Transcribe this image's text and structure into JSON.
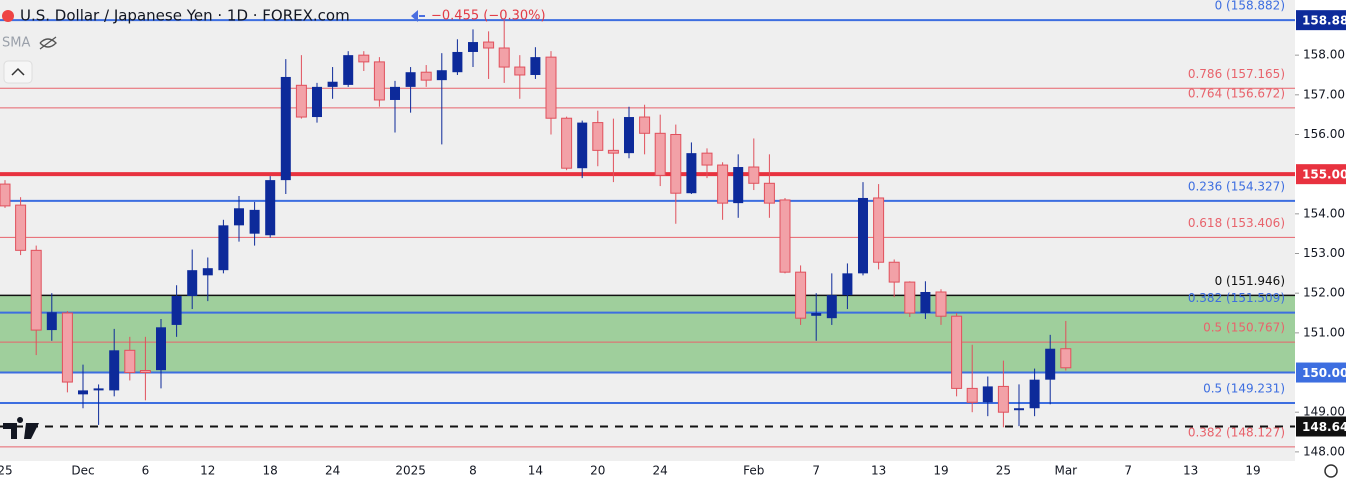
{
  "chart_data": {
    "type": "candlestick",
    "title": "U.S. Dollar / Japanese Yen · 1D · FOREX.com",
    "change_label": "−0.455 (−0.30%)",
    "indicator": "SMA",
    "up_color": "#0d2a9a",
    "down_color": "#f2a1a7",
    "down_border": "#e0505c",
    "categories": [
      "25",
      null,
      null,
      null,
      null,
      "Dec",
      null,
      null,
      null,
      "6",
      null,
      null,
      null,
      "12",
      null,
      null,
      null,
      "18",
      null,
      null,
      null,
      "24",
      null,
      null,
      null,
      null,
      "2025",
      null,
      null,
      null,
      "8",
      null,
      null,
      null,
      "14",
      null,
      null,
      null,
      "20",
      null,
      null,
      null,
      "24",
      null,
      null,
      null,
      null,
      null,
      "Feb",
      null,
      null,
      null,
      "7",
      null,
      null,
      null,
      "13",
      null,
      null,
      null,
      "19",
      null,
      null,
      null,
      "25",
      null,
      null,
      null,
      "Mar",
      null,
      null,
      null,
      "7",
      null,
      null,
      null,
      "13",
      null,
      null,
      null,
      "19"
    ],
    "open": [
      154.75,
      154.22,
      153.08,
      151.07,
      151.5,
      149.45,
      149.55,
      149.55,
      150.56,
      150.05,
      150.06,
      151.2,
      151.93,
      152.45,
      152.58,
      153.71,
      153.5,
      153.46,
      154.85,
      157.24,
      156.44,
      157.2,
      157.25,
      158.0,
      157.83,
      156.87,
      157.2,
      157.57,
      157.37,
      157.57,
      158.08,
      158.33,
      158.18,
      157.7,
      157.5,
      157.95,
      156.41,
      155.15,
      156.3,
      155.6,
      155.53,
      156.44,
      156.03,
      156.0,
      154.52,
      155.53,
      155.23,
      154.27,
      155.18,
      154.77,
      154.35,
      152.53,
      151.43,
      151.37,
      151.95,
      152.5,
      154.4,
      152.78,
      152.28,
      151.5,
      152.03,
      151.42,
      149.6,
      149.25,
      149.65,
      149.05,
      149.1,
      149.82,
      150.6,
      null,
      null,
      null,
      null,
      null,
      null,
      null,
      null,
      null,
      null,
      null,
      null
    ],
    "high": [
      154.85,
      154.42,
      153.2,
      152.0,
      151.55,
      150.2,
      149.7,
      151.1,
      150.9,
      150.9,
      151.35,
      152.2,
      153.1,
      152.9,
      153.85,
      154.45,
      154.3,
      154.95,
      157.9,
      158.0,
      157.3,
      157.7,
      158.1,
      158.1,
      157.95,
      157.35,
      157.7,
      157.75,
      158.05,
      158.4,
      158.65,
      158.6,
      158.88,
      158.0,
      158.2,
      158.1,
      156.45,
      156.35,
      156.6,
      156.4,
      156.7,
      156.75,
      156.5,
      156.25,
      155.8,
      155.65,
      155.3,
      155.5,
      155.9,
      155.5,
      154.4,
      152.7,
      152.0,
      152.5,
      152.75,
      154.8,
      154.75,
      152.85,
      152.3,
      152.3,
      152.1,
      151.5,
      150.7,
      149.9,
      150.3,
      149.7,
      150.1,
      150.95,
      151.3,
      null,
      null,
      null,
      null,
      null,
      null,
      null,
      null,
      null,
      null,
      null,
      null
    ],
    "low": [
      154.15,
      152.96,
      150.44,
      150.8,
      149.5,
      149.1,
      148.68,
      149.4,
      149.8,
      149.3,
      149.6,
      150.9,
      151.6,
      151.8,
      152.5,
      153.3,
      153.2,
      153.4,
      154.5,
      156.4,
      156.3,
      156.9,
      157.2,
      157.6,
      156.7,
      156.05,
      156.55,
      157.2,
      155.75,
      157.5,
      157.7,
      157.4,
      157.3,
      156.9,
      157.4,
      156.0,
      155.1,
      154.9,
      155.2,
      154.8,
      155.4,
      155.5,
      154.7,
      153.75,
      154.5,
      154.9,
      153.85,
      153.9,
      154.6,
      153.9,
      152.5,
      151.2,
      150.8,
      151.2,
      151.6,
      152.45,
      152.6,
      151.9,
      151.4,
      151.35,
      151.2,
      149.4,
      149.0,
      148.9,
      148.62,
      148.65,
      148.9,
      149.2,
      150.05,
      null,
      null,
      null,
      null,
      null,
      null,
      null,
      null,
      null,
      null,
      null,
      null
    ],
    "close": [
      154.2,
      153.08,
      151.07,
      151.52,
      149.76,
      149.55,
      149.6,
      150.56,
      150.0,
      150.0,
      151.14,
      151.93,
      152.58,
      152.63,
      153.71,
      154.14,
      154.1,
      154.85,
      157.45,
      156.44,
      157.2,
      157.33,
      158.0,
      157.83,
      156.87,
      157.2,
      157.57,
      157.37,
      157.62,
      158.08,
      158.33,
      158.18,
      157.7,
      157.5,
      157.95,
      156.41,
      155.15,
      156.3,
      155.6,
      155.53,
      156.44,
      156.03,
      154.97,
      154.52,
      155.53,
      155.23,
      154.27,
      155.18,
      154.77,
      154.27,
      152.53,
      151.37,
      151.5,
      151.95,
      152.5,
      154.4,
      152.78,
      152.28,
      151.5,
      152.03,
      151.42,
      149.6,
      149.25,
      149.65,
      149.0,
      149.1,
      149.82,
      150.6,
      150.12,
      null,
      null,
      null,
      null,
      null,
      null,
      null,
      null,
      null,
      null,
      null,
      null
    ],
    "ylim": [
      147.77,
      159.39
    ],
    "yticks": [
      {
        "value": 158,
        "label": "158.00"
      },
      {
        "value": 157,
        "label": "157.00"
      },
      {
        "value": 156,
        "label": "156.00"
      },
      {
        "value": 154,
        "label": "154.00"
      },
      {
        "value": 153,
        "label": "153.00"
      },
      {
        "value": 152,
        "label": "152.00"
      },
      {
        "value": 151,
        "label": "151.00"
      },
      {
        "value": 149,
        "label": "149.00"
      },
      {
        "value": 148,
        "label": "148.00"
      }
    ],
    "zone": {
      "from": 150.0,
      "to": 151.946,
      "color": "#9fcf9c"
    },
    "levels": [
      {
        "value": 158.882,
        "label": "0 (158.882)",
        "color": "#3d6ee0",
        "width": 2
      },
      {
        "value": 157.165,
        "label": "0.786 (157.165)",
        "color": "#e8636c",
        "width": 1
      },
      {
        "value": 156.672,
        "label": "0.764 (156.672)",
        "color": "#e8636c",
        "width": 1
      },
      {
        "value": 155.0,
        "color": "#e8323f",
        "width": 4
      },
      {
        "value": 154.327,
        "label": "0.236 (154.327)",
        "color": "#3d6ee0",
        "width": 2
      },
      {
        "value": 153.406,
        "label": "0.618 (153.406)",
        "color": "#e8636c",
        "width": 1
      },
      {
        "value": 151.946,
        "label": "0 (151.946)",
        "color": "#111111",
        "width": 1.5
      },
      {
        "value": 151.509,
        "label": "0.382 (151.509)",
        "color": "#3d6ee0",
        "width": 2
      },
      {
        "value": 150.767,
        "label": "0.5 (150.767)",
        "color": "#e8636c",
        "width": 1
      },
      {
        "value": 150.0,
        "color": "#3d6ee0",
        "width": 2
      },
      {
        "value": 149.231,
        "label": "0.5 (149.231)",
        "color": "#3d6ee0",
        "width": 2
      },
      {
        "value": 148.64,
        "color": "#111111",
        "width": 2,
        "dashed": true
      },
      {
        "value": 148.127,
        "label": "0.382 (148.127)",
        "color": "#e8636c",
        "width": 1
      }
    ],
    "price_boxes": [
      {
        "value": 158.882,
        "label": "158.88",
        "color": "#0d2a9a"
      },
      {
        "value": 155.0,
        "label": "155.00",
        "color": "#e8323f"
      },
      {
        "value": 150.0,
        "label": "150.00",
        "color": "#3d6ee0"
      },
      {
        "value": 148.64,
        "label": "148.64",
        "color": "#111111"
      }
    ]
  }
}
